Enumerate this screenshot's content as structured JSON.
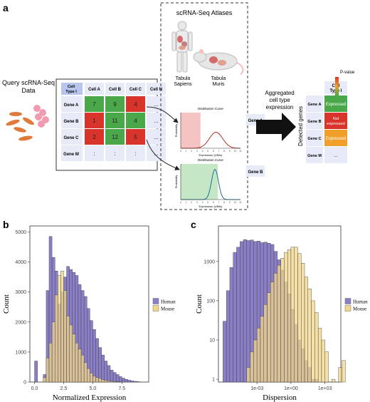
{
  "panel_a": {
    "label": "a",
    "query_title": [
      "Query scRNA-Seq",
      "Data"
    ],
    "atlas_title": "scRNA-Seq Atlases",
    "atlas_human": [
      "Tabula",
      "Sapiens"
    ],
    "atlas_mouse": [
      "Tabula",
      "Muris"
    ],
    "aggregate_text": [
      "Aggregated",
      "cell type",
      "expression"
    ],
    "detected_genes": "Detected genes",
    "pvalue_label": "P-value",
    "matrix": {
      "corner": [
        "Cell",
        "Type I"
      ],
      "columns": [
        "Cell A",
        "Cell B",
        "Cell C",
        "Cell N"
      ],
      "rows": [
        {
          "gene": "Gene A",
          "values": [
            "7",
            "9",
            "4",
            "..."
          ],
          "colors": [
            "#4aa84a",
            "#4aa84a",
            "#d9342b",
            "#e6ebf7"
          ]
        },
        {
          "gene": "Gene B",
          "values": [
            "1",
            "11",
            "4",
            "..."
          ],
          "colors": [
            "#d9342b",
            "#4aa84a",
            "#4aa84a",
            "#e6ebf7"
          ]
        },
        {
          "gene": "Gene C",
          "values": [
            "2",
            "12",
            "5",
            "..."
          ],
          "colors": [
            "#d9342b",
            "#4aa84a",
            "#d9342b",
            "#e6ebf7"
          ]
        },
        {
          "gene": "Gene  M",
          "values": [
            ":",
            ":",
            ":",
            "..."
          ],
          "colors": [
            "#e6ebf7",
            "#e6ebf7",
            "#e6ebf7",
            "#e6ebf7"
          ]
        }
      ]
    },
    "dist_a": {
      "title": "Distribution Curve",
      "gene": "Gene A",
      "ylabel": "Probability",
      "xlabel": "Expression (UMIs)",
      "ticks": [
        "0",
        "1",
        "2",
        "3",
        "4",
        "5",
        "6",
        "7",
        "8",
        "9",
        "10",
        "11"
      ]
    },
    "dist_b": {
      "title": "Distribution Curve",
      "gene": "Gene B",
      "ylabel": "Probability",
      "xlabel": "Expression (UMIs)",
      "ticks": [
        "0",
        "1",
        "2",
        "3",
        "4",
        "5",
        "6",
        "7",
        "8",
        "9",
        "10",
        "11"
      ]
    },
    "result": {
      "header": [
        "Cell",
        "Type I"
      ],
      "rows": [
        {
          "gene": "Gene A",
          "status": "Expressed",
          "color": "#4aa84a"
        },
        {
          "gene": "Gene B",
          "status": "Not expressed",
          "color": "#d9342b"
        },
        {
          "gene": "Gene C",
          "status": "Expressed",
          "color": "#f0a02a"
        },
        {
          "gene": "Gene  M",
          "status": "...",
          "color": "#e6ebf7"
        }
      ]
    }
  },
  "panel_b": {
    "label": "b",
    "chart_data": {
      "type": "bar",
      "xlabel": "Normalized Expression",
      "ylabel": "Count",
      "xlim": [
        -0.4,
        9.8
      ],
      "ylim": [
        0,
        5200
      ],
      "x_ticks": [
        "0.0",
        "2.5",
        "5.0",
        "7.5"
      ],
      "x_tick_values": [
        0,
        2.5,
        5,
        7.5
      ],
      "y_ticks": [
        "0",
        "1000",
        "2000",
        "3000",
        "4000",
        "5000"
      ],
      "y_tick_values": [
        0,
        1000,
        2000,
        3000,
        4000,
        5000
      ],
      "bin_start": 0,
      "bin_width": 0.25,
      "legend": "right",
      "series": [
        {
          "name": "Human",
          "color": "#8a7fc6",
          "values": [
            700,
            0,
            0,
            250,
            3050,
            4850,
            4150,
            3700,
            2600,
            3000,
            3500,
            3850,
            3750,
            3650,
            3550,
            3250,
            3050,
            2850,
            2450,
            2050,
            1750,
            1450,
            1150,
            900,
            700,
            550,
            400,
            320,
            250,
            180,
            130,
            90,
            60,
            40,
            25,
            15
          ]
        },
        {
          "name": "Mouse",
          "color": "#f2d68a",
          "values": [
            0,
            0,
            0,
            150,
            800,
            1300,
            2000,
            2900,
            3550,
            3700,
            3050,
            2200,
            1900,
            1600,
            1300,
            1100,
            900,
            650,
            450,
            300,
            200,
            150,
            120,
            80,
            60,
            40,
            30,
            20,
            10,
            5,
            0,
            0,
            0,
            0,
            0,
            0
          ]
        }
      ]
    }
  },
  "panel_c": {
    "label": "c",
    "chart_data": {
      "type": "bar",
      "xlabel": "Dispersion",
      "ylabel": "Count",
      "y_scale": "log",
      "x_scale": "log",
      "ylim": [
        0.85,
        8000
      ],
      "xlim_log10": [
        -6.4,
        4.4
      ],
      "x_ticks": [
        "1e-03",
        "1e+00",
        "1e+03"
      ],
      "x_tick_log10": [
        -3,
        0,
        3
      ],
      "y_ticks": [
        "1",
        "10",
        "100",
        "1000"
      ],
      "y_tick_values": [
        1,
        10,
        100,
        1000
      ],
      "bin_start_log10": -6.0,
      "bin_width_log10": 0.3,
      "legend": "right",
      "series": [
        {
          "name": "Human",
          "color": "#8a7fc6",
          "values": [
            30,
            180,
            700,
            1700,
            2300,
            3200,
            3600,
            3400,
            3500,
            3200,
            3300,
            3000,
            3100,
            2900,
            2700,
            1800,
            1100,
            600,
            300,
            150,
            60,
            25,
            10,
            6,
            3,
            2,
            1,
            1,
            0,
            0,
            0,
            0,
            0,
            0,
            0,
            0
          ]
        },
        {
          "name": "Mouse",
          "color": "#f2d68a",
          "values": [
            0,
            0,
            0,
            0,
            0,
            0,
            0,
            2,
            5,
            10,
            20,
            40,
            80,
            160,
            300,
            500,
            800,
            1200,
            1700,
            2000,
            2300,
            2300,
            1600,
            900,
            400,
            200,
            100,
            50,
            20,
            10,
            5,
            0,
            1,
            0,
            2,
            3
          ]
        }
      ]
    }
  }
}
